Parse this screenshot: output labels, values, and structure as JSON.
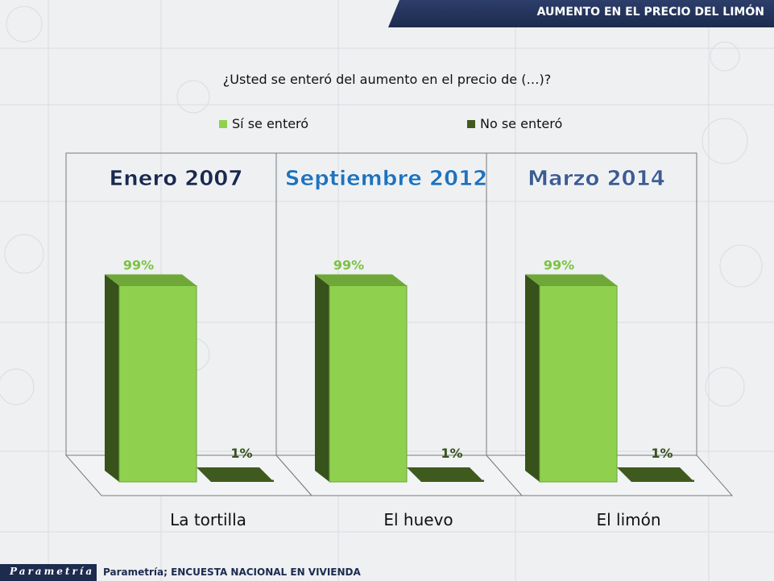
{
  "header": {
    "title": "AUMENTO EN EL PRECIO DEL LIMÓN"
  },
  "colors": {
    "si": "#8fd14f",
    "no": "#3f5a1e",
    "accent_header": "#1c2b4e"
  },
  "chart_data": {
    "type": "bar",
    "title": "¿Usted se enteró del aumento en el precio de (…)?",
    "series_names": [
      "Sí se enteró",
      "No se enteró"
    ],
    "legend_position": "top",
    "panels": [
      {
        "period": "Enero 2007",
        "category": "La tortilla",
        "values": [
          99,
          1
        ],
        "labels": [
          "99%",
          "1%"
        ],
        "period_color": "#1a2a50"
      },
      {
        "period": "Septiembre 2012",
        "category": "El huevo",
        "values": [
          99,
          1
        ],
        "labels": [
          "99%",
          "1%"
        ],
        "period_color": "#1f73bd"
      },
      {
        "period": "Marzo 2014",
        "category": "El limón",
        "values": [
          99,
          1
        ],
        "labels": [
          "99%",
          "1%"
        ],
        "period_color": "#3d5c92"
      }
    ],
    "ylim": [
      0,
      100
    ]
  },
  "footer": {
    "logo": "Parametría",
    "source": "Parametría; ENCUESTA NACIONAL  EN VIVIENDA"
  }
}
